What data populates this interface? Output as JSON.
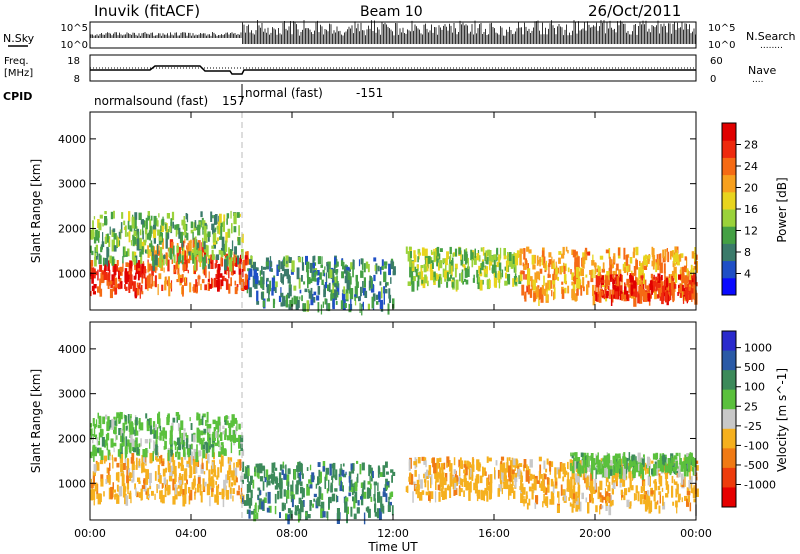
{
  "header": {
    "station": "Inuvik (fitACF)",
    "beam": "Beam 10",
    "date": "26/Oct/2011"
  },
  "left_labels": {
    "nsky": "N.Sky",
    "freq_line1": "Freq.",
    "freq_line2": "[MHz]",
    "cpid": "CPID"
  },
  "right_labels": {
    "nsearch": "N.Search",
    "nsearch_dots": "........",
    "nave": "Nave",
    "nave_dots": "...."
  },
  "noise_panel": {
    "left_ticks": [
      "10^5",
      "10^0"
    ],
    "right_ticks": [
      "10^5",
      "10^0"
    ]
  },
  "freq_panel": {
    "left_ticks": [
      "18",
      "8"
    ],
    "right_ticks": [
      "60",
      "0"
    ]
  },
  "cpid_segments": [
    {
      "name": "normalsound (fast)",
      "id": "157",
      "start_hour": 0,
      "end_hour": 6
    },
    {
      "name": "normal (fast)",
      "id": "-151",
      "start_hour": 6,
      "end_hour": 24
    }
  ],
  "power_colorbar": {
    "title": "Power [dB]",
    "ticks": [
      "28",
      "24",
      "20",
      "16",
      "12",
      "8",
      "4"
    ],
    "colors": [
      "#0a0aff",
      "#1f4fc6",
      "#3a7a6a",
      "#44a044",
      "#9ad23a",
      "#e8d41e",
      "#f7a01e",
      "#f56a14",
      "#ee2a0e",
      "#e00000"
    ]
  },
  "velocity_colorbar": {
    "title": "Velocity [m s^-1]",
    "ticks": [
      "1000",
      "500",
      "100",
      "25",
      "-25",
      "-100",
      "-500",
      "-1000"
    ],
    "colors": [
      "#2a2acc",
      "#2a5aa6",
      "#3c8a5a",
      "#5ac03c",
      "#c8c8c8",
      "#f5b01e",
      "#f07a14",
      "#ee3c0c",
      "#e60000"
    ]
  },
  "range_axis": {
    "label": "Slant Range [km]",
    "ticks": [
      "1000",
      "2000",
      "3000",
      "4000"
    ]
  },
  "time_axis": {
    "label": "Time UT",
    "ticks": [
      "00:00",
      "04:00",
      "08:00",
      "12:00",
      "16:00",
      "20:00",
      "00:00"
    ]
  },
  "chart_data": [
    {
      "type": "heatmap",
      "panel": "power",
      "x_range_hours": [
        0,
        24
      ],
      "y_range_km": [
        180,
        4600
      ],
      "zlabel": "Power [dB]",
      "zlim": [
        0,
        32
      ],
      "echo_regions": [
        {
          "t": [
            0,
            2.2
          ],
          "r": [
            600,
            1300
          ],
          "z": 28
        },
        {
          "t": [
            2.2,
            4.5
          ],
          "r": [
            700,
            1800
          ],
          "z": 24
        },
        {
          "t": [
            4.5,
            6.2
          ],
          "r": [
            700,
            1500
          ],
          "z": 28
        },
        {
          "t": [
            0,
            6
          ],
          "r": [
            1300,
            2400
          ],
          "z": 12
        },
        {
          "t": [
            6.2,
            12
          ],
          "r": [
            300,
            1400
          ],
          "z": 8
        },
        {
          "t": [
            12.5,
            17
          ],
          "r": [
            800,
            1600
          ],
          "z": 14
        },
        {
          "t": [
            17,
            24
          ],
          "r": [
            500,
            1600
          ],
          "z": 22
        },
        {
          "t": [
            20,
            24
          ],
          "r": [
            500,
            1000
          ],
          "z": 28
        }
      ]
    },
    {
      "type": "heatmap",
      "panel": "velocity",
      "x_range_hours": [
        0,
        24
      ],
      "y_range_km": [
        180,
        4600
      ],
      "zlabel": "Velocity [m s^-1]",
      "zlim": [
        -1000,
        1000
      ],
      "echo_regions": [
        {
          "t": [
            0,
            6
          ],
          "r": [
            700,
            1700
          ],
          "v": -100
        },
        {
          "t": [
            0,
            6
          ],
          "r": [
            1700,
            2600
          ],
          "v": 0
        },
        {
          "t": [
            6,
            12
          ],
          "r": [
            300,
            1500
          ],
          "v": 100
        },
        {
          "t": [
            12.5,
            17
          ],
          "r": [
            800,
            1600
          ],
          "v": -100
        },
        {
          "t": [
            17,
            24
          ],
          "r": [
            500,
            1600
          ],
          "v": -300
        },
        {
          "t": [
            19,
            24
          ],
          "r": [
            1300,
            1700
          ],
          "v": 0
        }
      ]
    }
  ]
}
